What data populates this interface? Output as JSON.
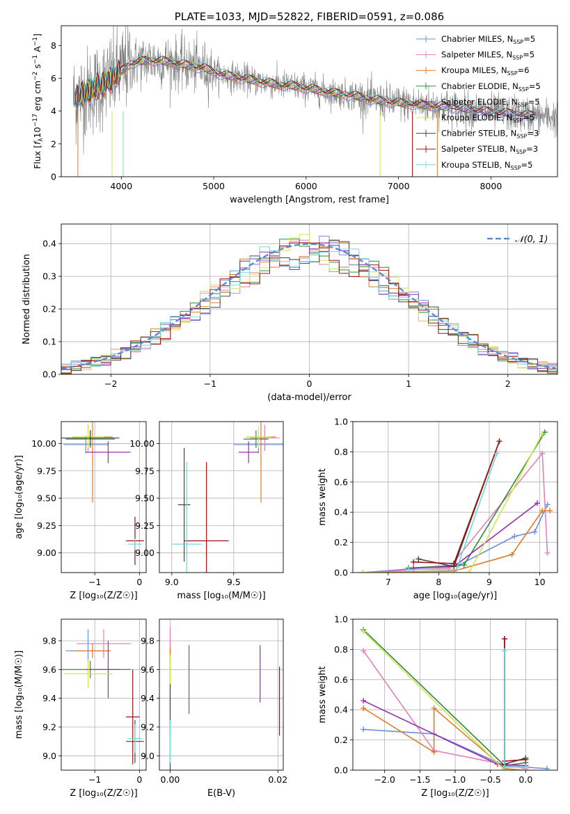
{
  "colors": {
    "chabrier_miles": "#6a8fdc",
    "salpeter_miles": "#e57fb8",
    "kroupa_miles": "#df7a2a",
    "chabrier_elodie": "#2f8a3a",
    "salpeter_elodie": "#9a2bb0",
    "kroupa_elodie": "#cde84a",
    "chabrier_stelib": "#444444",
    "salpeter_stelib": "#a01010",
    "kroupa_stelib": "#70d8d8",
    "data": "#808080",
    "gaussian": "#5b8ad8"
  },
  "chart_data": [
    {
      "id": "spectrum",
      "type": "line",
      "title": "PLATE=1033, MJD=52822, FIBERID=0591, z=0.086",
      "xlabel": "wavelength [Angstrom, rest frame]",
      "ylabel_parts": [
        "Flux [",
        "f",
        "λ",
        "10",
        "−17",
        " erg cm",
        "−2",
        " s",
        "−1",
        " A",
        "−1",
        "]"
      ],
      "xlim": [
        3350,
        8720
      ],
      "ylim": [
        0,
        9.2
      ],
      "xticks": [
        4000,
        5000,
        6000,
        7000,
        8000
      ],
      "yticks": [
        0,
        2,
        4,
        6,
        8
      ],
      "legend_position": "top-right",
      "legend": [
        {
          "name": "Chabrier MILES, N",
          "sub": "SSP",
          "suffix": "=5",
          "color_key": "chabrier_miles"
        },
        {
          "name": "Salpeter MILES, N",
          "sub": "SSP",
          "suffix": "=5",
          "color_key": "salpeter_miles"
        },
        {
          "name": "Kroupa MILES, N",
          "sub": "SSP",
          "suffix": "=6",
          "color_key": "kroupa_miles"
        },
        {
          "name": "Chabrier ELODIE, N",
          "sub": "SSP",
          "suffix": "=5",
          "color_key": "chabrier_elodie"
        },
        {
          "name": "Salpeter ELODIE, N",
          "sub": "SSP",
          "suffix": "=5",
          "color_key": "salpeter_elodie"
        },
        {
          "name": "Kroupa ELODIE, N",
          "sub": "SSP",
          "suffix": "=5",
          "color_key": "kroupa_elodie"
        },
        {
          "name": "Chabrier STELIB, N",
          "sub": "SSP",
          "suffix": "=3",
          "color_key": "chabrier_stelib"
        },
        {
          "name": "Salpeter STELIB, N",
          "sub": "SSP",
          "suffix": "=3",
          "color_key": "salpeter_stelib"
        },
        {
          "name": "Kroupa STELIB, N",
          "sub": "SSP",
          "suffix": "=5",
          "color_key": "kroupa_stelib"
        }
      ],
      "continuum": [
        [
          3500,
          4.8
        ],
        [
          3650,
          5.2
        ],
        [
          3800,
          5.6
        ],
        [
          3950,
          6.2
        ],
        [
          4100,
          6.9
        ],
        [
          4300,
          7.1
        ],
        [
          4500,
          7.0
        ],
        [
          4700,
          6.8
        ],
        [
          4900,
          6.6
        ],
        [
          5100,
          6.2
        ],
        [
          5300,
          6.0
        ],
        [
          5500,
          5.8
        ],
        [
          5700,
          5.6
        ],
        [
          5900,
          5.5
        ],
        [
          6100,
          5.3
        ],
        [
          6300,
          5.1
        ],
        [
          6500,
          4.95
        ],
        [
          6700,
          4.7
        ],
        [
          6900,
          4.55
        ],
        [
          7100,
          4.45
        ],
        [
          7300,
          4.35
        ],
        [
          7500,
          4.25
        ],
        [
          7700,
          4.15
        ],
        [
          7900,
          4.0
        ],
        [
          8100,
          3.9
        ],
        [
          8300,
          3.8
        ],
        [
          8500,
          3.7
        ],
        [
          8700,
          3.6
        ]
      ]
    },
    {
      "id": "residuals",
      "type": "histogram",
      "xlabel": "(data-model)/error",
      "ylabel": "Normed distribution",
      "xlim": [
        -2.5,
        2.5
      ],
      "ylim": [
        0,
        0.46
      ],
      "xticks": [
        -2,
        -1,
        0,
        1,
        2
      ],
      "yticks": [
        0.0,
        0.1,
        0.2,
        0.3,
        0.4
      ],
      "bin_width": 0.1,
      "grid": true,
      "legend_position": "top-right",
      "legend": [
        {
          "name": "𝒩(0, 1)",
          "color_key": "gaussian",
          "style": "dashed"
        }
      ]
    },
    {
      "id": "age_vs_Z",
      "type": "errorbar",
      "xlabel": "Z [log₁₀(Z/Z☉)]",
      "ylabel": "age  [log₁₀(age/yr)]",
      "xlim": [
        -1.75,
        0.15
      ],
      "ylim": [
        8.82,
        10.2
      ],
      "xticks": [
        -1,
        0
      ],
      "yticks": [
        9.0,
        9.25,
        9.5,
        9.75,
        10.0
      ],
      "grid": true,
      "points": [
        {
          "color_key": "chabrier_miles",
          "x": -1.2,
          "xerr": 0.5,
          "y": 9.99,
          "yerr": 0.08
        },
        {
          "color_key": "salpeter_miles",
          "x": -1.15,
          "xerr": 0.6,
          "y": 10.05,
          "yerr": 0.12
        },
        {
          "color_key": "kroupa_miles",
          "x": -1.05,
          "xerr": 0.45,
          "y": 10.06,
          "yerr": 0.6
        },
        {
          "color_key": "chabrier_elodie",
          "x": -1.1,
          "xerr": 0.55,
          "y": 10.04,
          "yerr": 0.08
        },
        {
          "color_key": "salpeter_elodie",
          "x": -0.7,
          "xerr": 0.5,
          "y": 9.92,
          "yerr": 0.1
        },
        {
          "color_key": "kroupa_elodie",
          "x": -1.15,
          "xerr": 0.35,
          "y": 10.06,
          "yerr": 0.1
        },
        {
          "color_key": "chabrier_stelib",
          "x": -1.1,
          "xerr": 0.65,
          "y": 10.05,
          "yerr": 0.07
        },
        {
          "color_key": "salpeter_stelib",
          "x": -0.1,
          "xerr": 0.2,
          "y": 9.11,
          "yerr": 0.22
        },
        {
          "color_key": "kroupa_stelib",
          "x": -0.1,
          "xerr": 0.15,
          "y": 9.08,
          "yerr": 0.05
        }
      ]
    },
    {
      "id": "age_vs_mass",
      "type": "errorbar",
      "xlabel": "mass [log₁₀(M/M☉)]",
      "ylabel": "",
      "xlim": [
        8.9,
        9.9
      ],
      "ylim": [
        8.82,
        10.2
      ],
      "xticks": [
        9.0,
        9.5
      ],
      "yticks": [
        9.0,
        9.25,
        9.5,
        9.75,
        10.0
      ],
      "grid": true,
      "points": [
        {
          "color_key": "chabrier_miles",
          "x": 9.7,
          "xerr": 0.2,
          "y": 9.99,
          "yerr": 0.08
        },
        {
          "color_key": "salpeter_miles",
          "x": 9.75,
          "xerr": 0.12,
          "y": 10.05,
          "yerr": 0.12
        },
        {
          "color_key": "kroupa_miles",
          "x": 9.72,
          "xerr": 0.12,
          "y": 10.06,
          "yerr": 0.6
        },
        {
          "color_key": "chabrier_elodie",
          "x": 9.68,
          "xerr": 0.1,
          "y": 10.04,
          "yerr": 0.08
        },
        {
          "color_key": "salpeter_elodie",
          "x": 9.62,
          "xerr": 0.08,
          "y": 9.92,
          "yerr": 0.1
        },
        {
          "color_key": "kroupa_elodie",
          "x": 9.7,
          "xerr": 0.1,
          "y": 10.06,
          "yerr": 0.1
        },
        {
          "color_key": "chabrier_stelib",
          "x": 9.1,
          "xerr": 0.05,
          "y": 9.44,
          "yerr": 0.52
        },
        {
          "color_key": "salpeter_stelib",
          "x": 9.28,
          "xerr": 0.18,
          "y": 9.11,
          "yerr": 0.72
        },
        {
          "color_key": "kroupa_stelib",
          "x": 9.12,
          "xerr": 0.12,
          "y": 9.08,
          "yerr": 0.75
        }
      ]
    },
    {
      "id": "weight_vs_age",
      "type": "line",
      "xlabel": "age  [log₁₀(age/yr)]",
      "ylabel": "mass weight",
      "xlim": [
        6.3,
        10.35
      ],
      "ylim": [
        0,
        1.0
      ],
      "xticks": [
        7,
        8,
        9,
        10
      ],
      "yticks": [
        0.0,
        0.2,
        0.4,
        0.6,
        0.8,
        1.0
      ],
      "grid": true,
      "series": [
        {
          "color_key": "chabrier_miles",
          "x": [
            6.5,
            8.4,
            9.5,
            9.9,
            10.15
          ],
          "y": [
            0.0,
            0.05,
            0.24,
            0.27,
            0.45
          ]
        },
        {
          "color_key": "salpeter_miles",
          "x": [
            6.5,
            8.2,
            10.05,
            10.15
          ],
          "y": [
            0.0,
            0.03,
            0.79,
            0.13
          ]
        },
        {
          "color_key": "kroupa_miles",
          "x": [
            6.5,
            8.3,
            9.45,
            10.05,
            10.2
          ],
          "y": [
            0.0,
            0.01,
            0.12,
            0.41,
            0.41
          ]
        },
        {
          "color_key": "chabrier_elodie",
          "x": [
            7.4,
            8.5,
            10.1
          ],
          "y": [
            0.03,
            0.05,
            0.93
          ]
        },
        {
          "color_key": "salpeter_elodie",
          "x": [
            7.5,
            8.3,
            9.95
          ],
          "y": [
            0.03,
            0.04,
            0.46
          ]
        },
        {
          "color_key": "kroupa_elodie",
          "x": [
            6.5,
            8.6,
            10.05
          ],
          "y": [
            0.0,
            0.0,
            0.92
          ]
        },
        {
          "color_key": "chabrier_stelib",
          "x": [
            7.6,
            8.3,
            9.2
          ],
          "y": [
            0.09,
            0.04,
            0.87
          ]
        },
        {
          "color_key": "salpeter_stelib",
          "x": [
            7.5,
            8.3,
            9.2
          ],
          "y": [
            0.07,
            0.06,
            0.87
          ]
        },
        {
          "color_key": "kroupa_stelib",
          "x": [
            7.4,
            8.35,
            9.15
          ],
          "y": [
            0.02,
            0.02,
            0.79
          ]
        }
      ]
    },
    {
      "id": "mass_vs_Z",
      "type": "errorbar",
      "xlabel": "Z [log₁₀(Z/Z☉)]",
      "ylabel": "mass [log₁₀(M/M☉)]",
      "xlim": [
        -1.75,
        0.15
      ],
      "ylim": [
        8.9,
        9.95
      ],
      "xticks": [
        -1,
        0
      ],
      "yticks": [
        9.0,
        9.2,
        9.4,
        9.6,
        9.8
      ],
      "grid": true,
      "points": [
        {
          "color_key": "chabrier_miles",
          "x": -1.15,
          "xerr": 0.5,
          "y": 9.73,
          "yerr": 0.15
        },
        {
          "color_key": "salpeter_miles",
          "x": -0.8,
          "xerr": 0.6,
          "y": 9.78,
          "yerr": 0.1
        },
        {
          "color_key": "kroupa_miles",
          "x": -1.05,
          "xerr": 0.4,
          "y": 9.73,
          "yerr": 0.05
        },
        {
          "color_key": "chabrier_elodie",
          "x": -1.1,
          "xerr": 0.65,
          "y": 9.6,
          "yerr": 0.06
        },
        {
          "color_key": "salpeter_elodie",
          "x": -0.7,
          "xerr": 0.5,
          "y": 9.6,
          "yerr": 0.2
        },
        {
          "color_key": "kroupa_elodie",
          "x": -1.15,
          "xerr": 0.55,
          "y": 9.57,
          "yerr": 0.1
        },
        {
          "color_key": "chabrier_stelib",
          "x": -0.1,
          "xerr": 0.2,
          "y": 9.1,
          "yerr": 0.15
        },
        {
          "color_key": "salpeter_stelib",
          "x": -0.15,
          "xerr": 0.15,
          "y": 9.27,
          "yerr": 0.33
        },
        {
          "color_key": "kroupa_stelib",
          "x": -0.1,
          "xerr": 0.15,
          "y": 9.12,
          "yerr": 0.1
        }
      ]
    },
    {
      "id": "mass_vs_ebv",
      "type": "errorbar",
      "xlabel": "E(B-V)",
      "ylabel": "",
      "xlim": [
        -0.002,
        0.021
      ],
      "ylim": [
        8.9,
        9.95
      ],
      "xticks": [
        0.0,
        0.02
      ],
      "yticks": [
        9.0,
        9.2,
        9.4,
        9.6,
        9.8
      ],
      "grid": true,
      "points": [
        {
          "color_key": "chabrier_miles",
          "x": 0.0,
          "xerr": 0,
          "y": 9.5,
          "yerr": 0.35
        },
        {
          "color_key": "salpeter_miles",
          "x": 0.0,
          "xerr": 0,
          "y": 9.7,
          "yerr": 0.2
        },
        {
          "color_key": "kroupa_miles",
          "x": 0.0,
          "xerr": 0,
          "y": 9.65,
          "yerr": 0.1
        },
        {
          "color_key": "chabrier_elodie",
          "x": 0.0035,
          "xerr": 0,
          "y": 9.53,
          "yerr": 0.24
        },
        {
          "color_key": "salpeter_elodie",
          "x": 0.0167,
          "xerr": 0,
          "y": 9.57,
          "yerr": 0.2
        },
        {
          "color_key": "kroupa_elodie",
          "x": 0.0,
          "xerr": 0,
          "y": 9.6,
          "yerr": 0.1
        },
        {
          "color_key": "chabrier_stelib",
          "x": 0.0,
          "xerr": 0,
          "y": 9.2,
          "yerr": 0.3
        },
        {
          "color_key": "salpeter_stelib",
          "x": 0.0203,
          "xerr": 0,
          "y": 9.38,
          "yerr": 0.24
        },
        {
          "color_key": "kroupa_stelib",
          "x": 0.0,
          "xerr": 0,
          "y": 9.1,
          "yerr": 0.15
        }
      ]
    },
    {
      "id": "weight_vs_Z",
      "type": "line",
      "xlabel": "Z [log₁₀(Z/Z☉)]",
      "ylabel": "mass weight",
      "xlim": [
        -2.45,
        0.45
      ],
      "ylim": [
        0,
        1.0
      ],
      "xticks": [
        -2.0,
        -1.5,
        -1.0,
        -0.5,
        0.0
      ],
      "yticks": [
        0.0,
        0.2,
        0.4,
        0.6,
        0.8,
        1.0
      ],
      "grid": true,
      "series": [
        {
          "color_key": "chabrier_miles",
          "x": [
            -2.3,
            -1.3,
            -0.3,
            0.3
          ],
          "y": [
            0.27,
            0.24,
            0.03,
            0.01
          ]
        },
        {
          "color_key": "salpeter_miles",
          "x": [
            -2.3,
            -1.3,
            0.0
          ],
          "y": [
            0.79,
            0.13,
            0.01
          ]
        },
        {
          "color_key": "kroupa_miles",
          "x": [
            -2.3,
            -1.3,
            -1.3,
            -0.3,
            0.0
          ],
          "y": [
            0.41,
            0.12,
            0.41,
            0.01,
            0.0
          ]
        },
        {
          "color_key": "chabrier_elodie",
          "x": [
            -2.3,
            -0.3,
            0.0
          ],
          "y": [
            0.93,
            0.03,
            0.05
          ]
        },
        {
          "color_key": "salpeter_elodie",
          "x": [
            -2.3,
            -0.4,
            0.0
          ],
          "y": [
            0.46,
            0.04,
            0.03
          ]
        },
        {
          "color_key": "kroupa_elodie",
          "x": [
            -2.3,
            -0.3,
            0.0
          ],
          "y": [
            0.92,
            0.0,
            0.0
          ]
        },
        {
          "color_key": "chabrier_stelib",
          "x": [
            -0.3,
            -0.3,
            0.0
          ],
          "y": [
            0.87,
            0.04,
            0.08
          ]
        },
        {
          "color_key": "salpeter_stelib",
          "x": [
            -0.3,
            -0.3,
            0.0
          ],
          "y": [
            0.87,
            0.06,
            0.07
          ]
        },
        {
          "color_key": "kroupa_stelib",
          "x": [
            -0.3,
            -0.3,
            0.0
          ],
          "y": [
            0.79,
            0.02,
            0.02
          ]
        }
      ]
    }
  ]
}
